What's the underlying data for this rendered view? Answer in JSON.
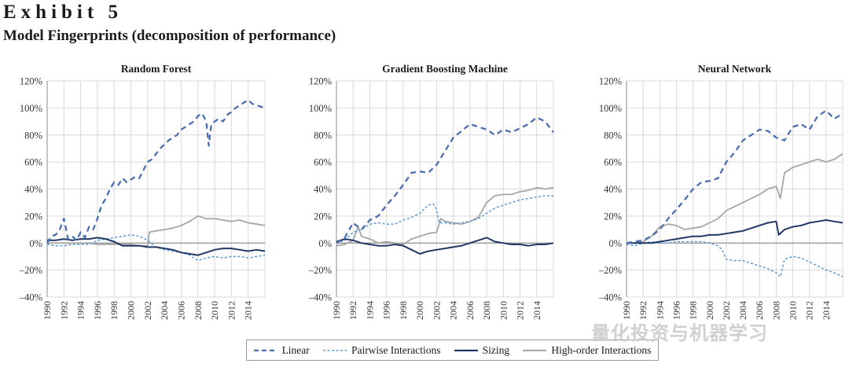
{
  "header": {
    "exhibit": "Exhibit 5",
    "subtitle": "Model Fingerprints (decomposition of performance)"
  },
  "watermark": "量化投资与机器学习",
  "colors": {
    "linear": "#4a6fae",
    "pairwise": "#5b9bd5",
    "sizing": "#1f3864",
    "high_order": "#a6a6a6",
    "grid": "#d9d9d9"
  },
  "legend": [
    {
      "key": "linear",
      "label": "Linear",
      "icon": "dashed-line-icon"
    },
    {
      "key": "pairwise",
      "label": "Pairwise Interactions",
      "icon": "dotted-line-icon"
    },
    {
      "key": "sizing",
      "label": "Sizing",
      "icon": "solid-line-icon"
    },
    {
      "key": "high_order",
      "label": "High-order Interactions",
      "icon": "solid-line-icon"
    }
  ],
  "chart_data": [
    {
      "type": "line",
      "title": "Random Forest",
      "xlabel": "",
      "ylabel": "",
      "ylim": [
        -40,
        120
      ],
      "yticks": [
        -40,
        -20,
        0,
        20,
        40,
        60,
        80,
        100,
        120
      ],
      "ytick_labels": [
        "–40%",
        "–20%",
        "0%",
        "20%",
        "40%",
        "60%",
        "80%",
        "100%",
        "120%"
      ],
      "xlim": [
        1990,
        2016
      ],
      "xticks": [
        1990,
        1992,
        1994,
        1996,
        1998,
        2000,
        2002,
        2004,
        2006,
        2008,
        2010,
        2012,
        2014
      ],
      "series": [
        {
          "name": "Linear",
          "key": "linear",
          "x": [
            1990,
            1990.5,
            1991,
            1991.5,
            1992,
            1992.5,
            1993,
            1993.5,
            1994,
            1994.5,
            1995,
            1995.5,
            1996,
            1996.5,
            1997,
            1997.5,
            1998,
            1998.5,
            1999,
            1999.5,
            2000,
            2000.5,
            2001,
            2001.5,
            2002,
            2002.5,
            2003,
            2003.5,
            2004,
            2004.5,
            2005,
            2005.5,
            2006,
            2006.5,
            2007,
            2007.5,
            2008,
            2008.5,
            2009,
            2009.3,
            2009.6,
            2010,
            2010.5,
            2011,
            2011.5,
            2012,
            2012.5,
            2013,
            2013.5,
            2014,
            2014.5,
            2015,
            2015.5,
            2016
          ],
          "values": [
            0,
            5,
            6,
            10,
            18,
            3,
            5,
            2,
            8,
            4,
            12,
            10,
            18,
            28,
            33,
            40,
            45,
            43,
            48,
            45,
            47,
            49,
            48,
            54,
            60,
            62,
            66,
            70,
            73,
            76,
            78,
            80,
            84,
            86,
            88,
            90,
            94,
            96,
            90,
            72,
            88,
            90,
            92,
            90,
            95,
            97,
            100,
            102,
            104,
            106,
            103,
            102,
            101,
            100
          ]
        },
        {
          "name": "Pairwise Interactions",
          "key": "pairwise",
          "x": [
            1990,
            1991,
            1992,
            1993,
            1994,
            1995,
            1996,
            1997,
            1998,
            1999,
            2000,
            2001,
            2002,
            2003,
            2004,
            2005,
            2006,
            2007,
            2008,
            2009,
            2010,
            2011,
            2012,
            2013,
            2014,
            2015,
            2016
          ],
          "values": [
            -1,
            -2,
            -2,
            -1,
            -1,
            -1,
            2,
            3,
            4,
            5,
            6,
            5,
            2,
            -3,
            -5,
            -6,
            -7,
            -9,
            -13,
            -11,
            -10,
            -11,
            -10,
            -10,
            -11,
            -10,
            -9
          ]
        },
        {
          "name": "Sizing",
          "key": "sizing",
          "x": [
            1990,
            1991,
            1992,
            1993,
            1994,
            1995,
            1996,
            1997,
            1998,
            1999,
            2000,
            2001,
            2002,
            2003,
            2004,
            2005,
            2006,
            2007,
            2008,
            2009,
            2010,
            2011,
            2012,
            2013,
            2014,
            2015,
            2016
          ],
          "values": [
            2,
            2,
            3,
            2,
            3,
            3,
            4,
            3,
            1,
            -2,
            -2,
            -2,
            -3,
            -3,
            -4,
            -5,
            -7,
            -8,
            -9,
            -7,
            -5,
            -4,
            -4,
            -5,
            -6,
            -5,
            -6
          ]
        },
        {
          "name": "High-order Interactions",
          "key": "high_order",
          "x": [
            1990,
            1991,
            1992,
            1993,
            1994,
            1995,
            1996,
            1997,
            1998,
            1999,
            2000,
            2001,
            2002,
            2002.2,
            2003,
            2004,
            2005,
            2006,
            2007,
            2008,
            2009,
            2010,
            2011,
            2012,
            2013,
            2014,
            2015,
            2016
          ],
          "values": [
            0,
            0,
            0,
            0,
            0,
            0,
            -1,
            -1,
            -1,
            -1,
            -1,
            -2,
            -2,
            8,
            9,
            10,
            11,
            13,
            16,
            20,
            18,
            18,
            17,
            16,
            17,
            15,
            14,
            13
          ]
        }
      ]
    },
    {
      "type": "line",
      "title": "Gradient Boosting Machine",
      "xlabel": "",
      "ylabel": "",
      "ylim": [
        -40,
        120
      ],
      "yticks": [
        -40,
        -20,
        0,
        20,
        40,
        60,
        80,
        100,
        120
      ],
      "ytick_labels": [
        "–40%",
        "–20%",
        "0%",
        "20%",
        "40%",
        "60%",
        "80%",
        "100%",
        "120%"
      ],
      "xlim": [
        1990,
        2016
      ],
      "xticks": [
        1990,
        1992,
        1994,
        1996,
        1998,
        2000,
        2002,
        2004,
        2006,
        2008,
        2010,
        2012,
        2014
      ],
      "series": [
        {
          "name": "Linear",
          "key": "linear",
          "x": [
            1990,
            1991,
            1992,
            1993,
            1994,
            1995,
            1996,
            1997,
            1998,
            1999,
            2000,
            2001,
            2002,
            2003,
            2004,
            2005,
            2006,
            2007,
            2008,
            2009,
            2010,
            2011,
            2012,
            2013,
            2014,
            2015,
            2016
          ],
          "values": [
            0,
            4,
            15,
            10,
            17,
            20,
            28,
            35,
            43,
            52,
            53,
            52,
            58,
            68,
            78,
            83,
            88,
            86,
            84,
            80,
            84,
            82,
            85,
            88,
            93,
            90,
            82
          ]
        },
        {
          "name": "Pairwise Interactions",
          "key": "pairwise",
          "x": [
            1990,
            1991,
            1992,
            1993,
            1994,
            1995,
            1996,
            1997,
            1998,
            1999,
            2000,
            2001,
            2001.6,
            2002,
            2002.3,
            2003,
            2004,
            2005,
            2006,
            2007,
            2008,
            2009,
            2010,
            2011,
            2012,
            2013,
            2014,
            2015,
            2016
          ],
          "values": [
            0,
            2,
            8,
            10,
            14,
            15,
            14,
            14,
            17,
            19,
            22,
            28,
            29,
            25,
            15,
            15,
            14,
            15,
            16,
            18,
            22,
            26,
            28,
            30,
            32,
            33,
            34,
            35,
            35
          ]
        },
        {
          "name": "Sizing",
          "key": "sizing",
          "x": [
            1990,
            1991,
            1992,
            1993,
            1994,
            1995,
            1996,
            1997,
            1998,
            1999,
            2000,
            2001,
            2002,
            2003,
            2004,
            2005,
            2006,
            2007,
            2008,
            2009,
            2010,
            2011,
            2012,
            2013,
            2014,
            2015,
            2016
          ],
          "values": [
            1,
            3,
            2,
            0,
            -1,
            -2,
            -2,
            -1,
            -2,
            -5,
            -8,
            -6,
            -5,
            -4,
            -3,
            -2,
            0,
            2,
            4,
            1,
            0,
            -1,
            -1,
            -2,
            -1,
            -1,
            0
          ]
        },
        {
          "name": "High-order Interactions",
          "key": "high_order",
          "x": [
            1990,
            1991,
            1992,
            1992.6,
            1993,
            1994,
            1995,
            1996,
            1997,
            1998,
            1999,
            2000,
            2001,
            2002,
            2002.5,
            2003,
            2004,
            2005,
            2006,
            2007,
            2008,
            2009,
            2010,
            2011,
            2012,
            2013,
            2014,
            2015,
            2016
          ],
          "values": [
            -2,
            -1,
            2,
            12,
            5,
            3,
            0,
            1,
            0,
            -1,
            3,
            5,
            7,
            8,
            18,
            16,
            15,
            14,
            16,
            19,
            30,
            35,
            36,
            36,
            38,
            39,
            41,
            40,
            41
          ]
        }
      ]
    },
    {
      "type": "line",
      "title": "Neural Network",
      "xlabel": "",
      "ylabel": "",
      "ylim": [
        -40,
        120
      ],
      "yticks": [
        -40,
        -20,
        0,
        20,
        40,
        60,
        80,
        100,
        120
      ],
      "ytick_labels": [
        "–40%",
        "–20%",
        "0%",
        "20%",
        "40%",
        "60%",
        "80%",
        "100%",
        "120%"
      ],
      "xlim": [
        1990,
        2016
      ],
      "xticks": [
        1990,
        1992,
        1994,
        1996,
        1998,
        2000,
        2002,
        2004,
        2006,
        2008,
        2010,
        2012,
        2014
      ],
      "series": [
        {
          "name": "Linear",
          "key": "linear",
          "x": [
            1990,
            1991,
            1992,
            1993,
            1994,
            1995,
            1996,
            1997,
            1998,
            1999,
            2000,
            2001,
            2002,
            2003,
            2004,
            2005,
            2006,
            2007,
            2008,
            2009,
            2010,
            2011,
            2012,
            2013,
            2014,
            2015,
            2016
          ],
          "values": [
            0,
            1,
            2,
            5,
            10,
            18,
            25,
            32,
            40,
            45,
            46,
            48,
            60,
            67,
            76,
            80,
            84,
            83,
            78,
            76,
            86,
            88,
            84,
            94,
            98,
            92,
            96
          ]
        },
        {
          "name": "Pairwise Interactions",
          "key": "pairwise",
          "x": [
            1990,
            1991,
            1992,
            1993,
            1994,
            1995,
            1996,
            1997,
            1998,
            1999,
            2000,
            2001,
            2001.5,
            2002,
            2003,
            2004,
            2005,
            2006,
            2007,
            2008,
            2008.5,
            2009,
            2010,
            2011,
            2012,
            2013,
            2014,
            2015,
            2016
          ],
          "values": [
            -1,
            -2,
            0,
            1,
            0,
            0,
            1,
            1,
            1,
            1,
            0,
            -2,
            -5,
            -12,
            -13,
            -13,
            -15,
            -17,
            -19,
            -22,
            -25,
            -12,
            -10,
            -11,
            -14,
            -17,
            -20,
            -22,
            -25
          ]
        },
        {
          "name": "Sizing",
          "key": "sizing",
          "x": [
            1990,
            1991,
            1992,
            1993,
            1994,
            1995,
            1996,
            1997,
            1998,
            1999,
            2000,
            2001,
            2002,
            2003,
            2004,
            2005,
            2006,
            2007,
            2008,
            2008.3,
            2009,
            2010,
            2011,
            2012,
            2013,
            2014,
            2015,
            2016
          ],
          "values": [
            0,
            0,
            0,
            0,
            1,
            2,
            3,
            4,
            5,
            5,
            6,
            6,
            7,
            8,
            9,
            11,
            13,
            15,
            16,
            6,
            10,
            12,
            13,
            15,
            16,
            17,
            16,
            15
          ]
        },
        {
          "name": "High-order Interactions",
          "key": "high_order",
          "x": [
            1990,
            1991,
            1992,
            1993,
            1994,
            1995,
            1996,
            1997,
            1998,
            1999,
            2000,
            2001,
            2002,
            2003,
            2004,
            2005,
            2006,
            2007,
            2008,
            2008.5,
            2009,
            2010,
            2011,
            2012,
            2013,
            2014,
            2015,
            2016
          ],
          "values": [
            0,
            0,
            1,
            5,
            12,
            14,
            13,
            10,
            11,
            12,
            15,
            18,
            24,
            27,
            30,
            33,
            36,
            40,
            42,
            33,
            52,
            56,
            58,
            60,
            62,
            60,
            62,
            66
          ]
        }
      ]
    }
  ]
}
